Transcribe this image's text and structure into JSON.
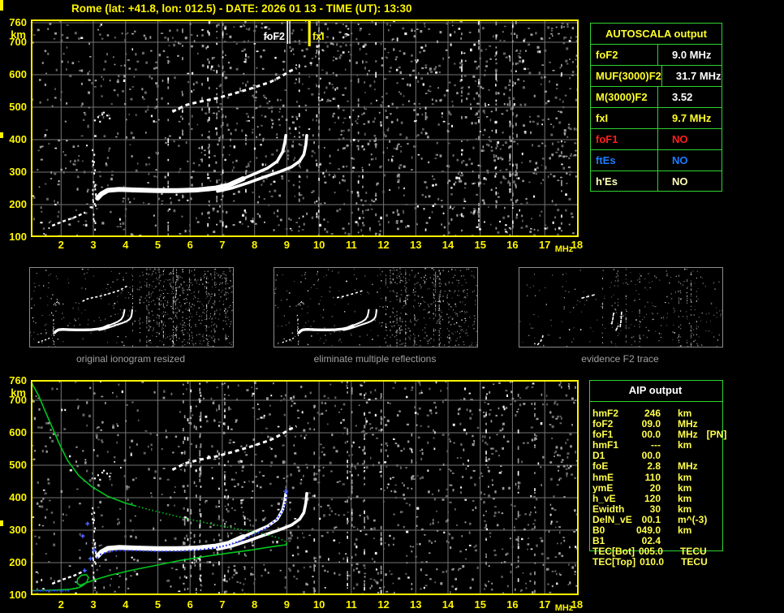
{
  "title": "Rome (lat: +41.8, lon: 012.5) - DATE: 2026 01 13 - TIME (UT): 13:30",
  "palette": {
    "yellow": "#fdf500",
    "text_yellow": "#ffff2a",
    "green_border": "#2fd32f",
    "profile_green": "#00c81e",
    "trace_blue": "#2b3bf2",
    "red": "#ff1e1e",
    "table_blue": "#1b7cff",
    "pale_yellow": "#ffffb4",
    "grid_gray": "#757575",
    "caption_gray": "#a0a0a0"
  },
  "top_plot": {
    "y_unit": "km",
    "x_unit": "MHz",
    "y_ticks": [
      "760",
      "700",
      "600",
      "500",
      "400",
      "300",
      "200",
      "100"
    ],
    "x_ticks": [
      "2",
      "3",
      "4",
      "5",
      "6",
      "7",
      "8",
      "9",
      "10",
      "11",
      "12",
      "13",
      "14",
      "15",
      "16",
      "17",
      "18"
    ],
    "fof2_label": "foF2",
    "fxi_label": "fxI"
  },
  "bottom_plot": {
    "y_unit": "km",
    "x_unit": "MHz",
    "y_ticks": [
      "760",
      "700",
      "600",
      "500",
      "400",
      "300",
      "200",
      "100"
    ],
    "x_ticks": [
      "2",
      "3",
      "4",
      "5",
      "6",
      "7",
      "8",
      "9",
      "10",
      "11",
      "12",
      "13",
      "14",
      "15",
      "16",
      "17",
      "18"
    ]
  },
  "autoscala": {
    "title": "AUTOSCALA output",
    "rows": [
      {
        "label": "foF2",
        "value": "9.0 MHz",
        "lc": "y",
        "vc": "w"
      },
      {
        "label": "MUF(3000)F2",
        "value": "31.7 MHz",
        "lc": "y",
        "vc": "w"
      },
      {
        "label": "M(3000)F2",
        "value": "3.52",
        "lc": "y",
        "vc": "w"
      },
      {
        "label": "fxI",
        "value": "9.7 MHz",
        "lc": "y",
        "vc": "y"
      },
      {
        "label": "foF1",
        "value": "NO",
        "lc": "r",
        "vc": "r"
      },
      {
        "label": "ftEs",
        "value": "NO",
        "lc": "b",
        "vc": "b"
      },
      {
        "label": "h'Es",
        "value": "NO",
        "lc": "p",
        "vc": "p"
      }
    ]
  },
  "aip": {
    "title": "AIP output",
    "rows": [
      {
        "label": "hmF2",
        "value": "246",
        "unit": "km",
        "extra": ""
      },
      {
        "label": "foF2",
        "value": "09.0",
        "unit": "MHz",
        "extra": ""
      },
      {
        "label": "foF1",
        "value": "00.0",
        "unit": "MHz",
        "extra": "[PN]"
      },
      {
        "label": "hmF1",
        "value": "---",
        "unit": "km",
        "extra": ""
      },
      {
        "label": "D1",
        "value": "00.0",
        "unit": "",
        "extra": ""
      },
      {
        "label": "foE",
        "value": "2.8",
        "unit": "MHz",
        "extra": ""
      },
      {
        "label": "hmE",
        "value": "110",
        "unit": "km",
        "extra": ""
      },
      {
        "label": "ymE",
        "value": "20",
        "unit": "km",
        "extra": ""
      },
      {
        "label": "h_vE",
        "value": "120",
        "unit": "km",
        "extra": ""
      },
      {
        "label": "Ewidth",
        "value": "30",
        "unit": "km",
        "extra": ""
      },
      {
        "label": "DelN_vE",
        "value": "00.1",
        "unit": "m^(-3)",
        "extra": ""
      },
      {
        "label": "B0",
        "value": "049.0",
        "unit": "km",
        "extra": ""
      },
      {
        "label": "B1",
        "value": "02.4",
        "unit": "",
        "extra": ""
      },
      {
        "label": "TEC[Bot]",
        "value": "005.0",
        "unit": "TECU",
        "extra": ""
      },
      {
        "label": "TEC[Top]",
        "value": "010.0",
        "unit": "TECU",
        "extra": ""
      }
    ]
  },
  "thumbnails": [
    {
      "caption": "original ionogram resized"
    },
    {
      "caption": "eliminate multiple reflections"
    },
    {
      "caption": "evidence F2 trace"
    }
  ],
  "chart_data": {
    "type": "scatter",
    "title": "Ionogram - Rome 2026-01-13 13:30 UT",
    "xlabel": "MHz",
    "ylabel": "km",
    "xlim": [
      1.06,
      18.06
    ],
    "ylim": [
      100,
      770
    ],
    "grid": true,
    "markers": {
      "foF2_MHz": 9.0,
      "fxI_MHz": 9.7,
      "MUF3000F2_MHz": 31.7,
      "M3000F2": 3.52,
      "hmF2_km": 246
    },
    "series": [
      {
        "id": "band",
        "name": "F2 trace (O+X merged band)",
        "color": "#ffffff",
        "points": [
          [
            3.13,
            220
          ],
          [
            3.25,
            233
          ],
          [
            3.45,
            244
          ],
          [
            3.8,
            247
          ],
          [
            4.3,
            245
          ],
          [
            5.0,
            243
          ],
          [
            5.6,
            243
          ],
          [
            6.2,
            245
          ],
          [
            6.8,
            251
          ],
          [
            7.2,
            260
          ],
          [
            7.65,
            280
          ]
        ]
      },
      {
        "id": "o_tail",
        "name": "F2 O-mode asymptote (foF2 9.0)",
        "color": "#ffffff",
        "points": [
          [
            7.65,
            280
          ],
          [
            8.0,
            295
          ],
          [
            8.4,
            312
          ],
          [
            8.7,
            333
          ],
          [
            8.87,
            362
          ],
          [
            8.94,
            392
          ],
          [
            8.97,
            413
          ]
        ]
      },
      {
        "id": "x_tail",
        "name": "F2 X-mode asymptote (fxI 9.7)",
        "color": "#ffffff",
        "points": [
          [
            6.85,
            241
          ],
          [
            7.3,
            251
          ],
          [
            7.8,
            267
          ],
          [
            8.3,
            285
          ],
          [
            8.8,
            302
          ],
          [
            9.15,
            316
          ],
          [
            9.4,
            334
          ],
          [
            9.53,
            354
          ],
          [
            9.59,
            383
          ],
          [
            9.62,
            413
          ]
        ]
      },
      {
        "id": "hop2",
        "name": "second-hop F2 reflection",
        "color": "#ffffff",
        "points": [
          [
            5.45,
            486
          ],
          [
            5.85,
            506
          ],
          [
            6.3,
            517
          ],
          [
            6.85,
            528
          ],
          [
            7.5,
            546
          ],
          [
            8.0,
            561
          ],
          [
            8.5,
            578
          ],
          [
            8.85,
            596
          ],
          [
            9.1,
            611
          ],
          [
            9.3,
            620
          ]
        ]
      },
      {
        "id": "e_echo",
        "name": "low-frequency E-region echoes",
        "color": "#ffffff",
        "points": [
          [
            1.72,
            135
          ],
          [
            2.05,
            148
          ],
          [
            2.4,
            160
          ],
          [
            2.75,
            176
          ]
        ]
      },
      {
        "id": "cusp_dots",
        "name": "cusp scatter near 3 MHz / 470 km",
        "color": "#ffffff",
        "points": [
          [
            3.02,
            462
          ],
          [
            3.12,
            472
          ],
          [
            3.25,
            480
          ],
          [
            3.4,
            477
          ],
          [
            3.18,
            458
          ],
          [
            3.48,
            468
          ],
          [
            3.3,
            486
          ]
        ]
      },
      {
        "id": "profile_a",
        "name": "electron density profile (topside, solid)",
        "color": "#00c81e",
        "points": [
          [
            1.07,
            757
          ],
          [
            1.15,
            742
          ],
          [
            1.3,
            715
          ],
          [
            1.5,
            668
          ],
          [
            1.7,
            622
          ],
          [
            1.95,
            565
          ],
          [
            2.2,
            515
          ],
          [
            2.55,
            468
          ],
          [
            2.95,
            434
          ],
          [
            3.45,
            404
          ],
          [
            4.0,
            383
          ],
          [
            4.3,
            375
          ]
        ]
      },
      {
        "id": "profile_b",
        "name": "electron density profile (dotted section)",
        "color": "#00c81e",
        "points": [
          [
            4.3,
            375
          ],
          [
            4.7,
            364
          ],
          [
            5.4,
            347
          ],
          [
            6.15,
            330
          ],
          [
            6.9,
            314
          ],
          [
            7.65,
            301
          ],
          [
            8.3,
            288
          ],
          [
            8.75,
            276
          ],
          [
            9.0,
            263
          ]
        ]
      },
      {
        "id": "profile_c",
        "name": "electron density profile (bottomside + E valley)",
        "color": "#00c81e",
        "points": [
          [
            9.0,
            263
          ],
          [
            8.98,
            255
          ],
          [
            8.75,
            252
          ],
          [
            8.4,
            247
          ],
          [
            7.9,
            239
          ],
          [
            7.15,
            229
          ],
          [
            6.4,
            218
          ],
          [
            5.65,
            206
          ],
          [
            4.9,
            191
          ],
          [
            4.15,
            176
          ],
          [
            3.5,
            161
          ],
          [
            3.0,
            146
          ],
          [
            2.73,
            136
          ],
          [
            2.58,
            130
          ],
          [
            2.5,
            137
          ],
          [
            2.51,
            150
          ],
          [
            2.63,
            161
          ],
          [
            2.78,
            163
          ],
          [
            2.85,
            155
          ],
          [
            2.8,
            141
          ],
          [
            2.68,
            130
          ],
          [
            2.52,
            122
          ],
          [
            2.28,
            118
          ],
          [
            1.9,
            116
          ],
          [
            1.5,
            115
          ],
          [
            1.08,
            114
          ]
        ]
      },
      {
        "id": "profile_d",
        "name": "profile dotted connector near E",
        "color": "#00c81e",
        "points": [
          [
            2.18,
            117
          ],
          [
            2.35,
            119
          ],
          [
            2.5,
            124
          ]
        ]
      },
      {
        "id": "blue_main",
        "name": "restored trace (blue dots)",
        "color": "#2b3bf2",
        "points": [
          [
            3.1,
            218
          ],
          [
            3.2,
            228
          ],
          [
            3.45,
            236
          ],
          [
            3.8,
            240
          ],
          [
            4.3,
            239
          ],
          [
            5.0,
            237
          ],
          [
            5.7,
            238
          ],
          [
            6.3,
            242
          ],
          [
            6.8,
            249
          ],
          [
            7.2,
            258
          ],
          [
            7.6,
            272
          ],
          [
            8.0,
            291
          ],
          [
            8.35,
            310
          ],
          [
            8.65,
            335
          ],
          [
            8.85,
            362
          ],
          [
            8.93,
            390
          ],
          [
            8.97,
            415
          ]
        ]
      },
      {
        "id": "blue_bottom",
        "name": "restored trace low band",
        "color": "#2b3bf2",
        "points": [
          [
            1.08,
            116
          ],
          [
            2.2,
            116
          ]
        ]
      },
      {
        "id": "blue_marks",
        "name": "restored trace markers",
        "color": "#2b3bf2",
        "points": [
          [
            2.82,
            320
          ],
          [
            2.67,
            282
          ],
          [
            2.91,
            212
          ],
          [
            2.73,
            176
          ],
          [
            3.02,
            238
          ]
        ]
      },
      {
        "id": "t3_arcs",
        "name": "evidence F2 trace remnants",
        "color": "#ffffff",
        "segs": [
          [
            [
              6.3,
              514
            ],
            [
              6.6,
              521
            ],
            [
              6.9,
              529
            ]
          ],
          [
            [
              7.15,
              536
            ],
            [
              7.5,
              547
            ]
          ],
          [
            [
              8.8,
              295
            ],
            [
              8.9,
              345
            ],
            [
              8.95,
              395
            ]
          ],
          [
            [
              9.15,
              240
            ],
            [
              9.32,
              275
            ]
          ],
          [
            [
              9.5,
              270
            ],
            [
              9.58,
              330
            ],
            [
              9.62,
              400
            ]
          ],
          [
            [
              2.6,
              118
            ],
            [
              2.85,
              148
            ],
            [
              3.0,
              182
            ],
            [
              3.08,
              215
            ]
          ]
        ]
      },
      {
        "id": "t3_dots",
        "name": "evidence F2 isolated echoes",
        "color": "#ffffff",
        "points": [
          [
            5.2,
            250
          ],
          [
            6.15,
            250
          ],
          [
            2.3,
            130
          ]
        ]
      }
    ]
  }
}
